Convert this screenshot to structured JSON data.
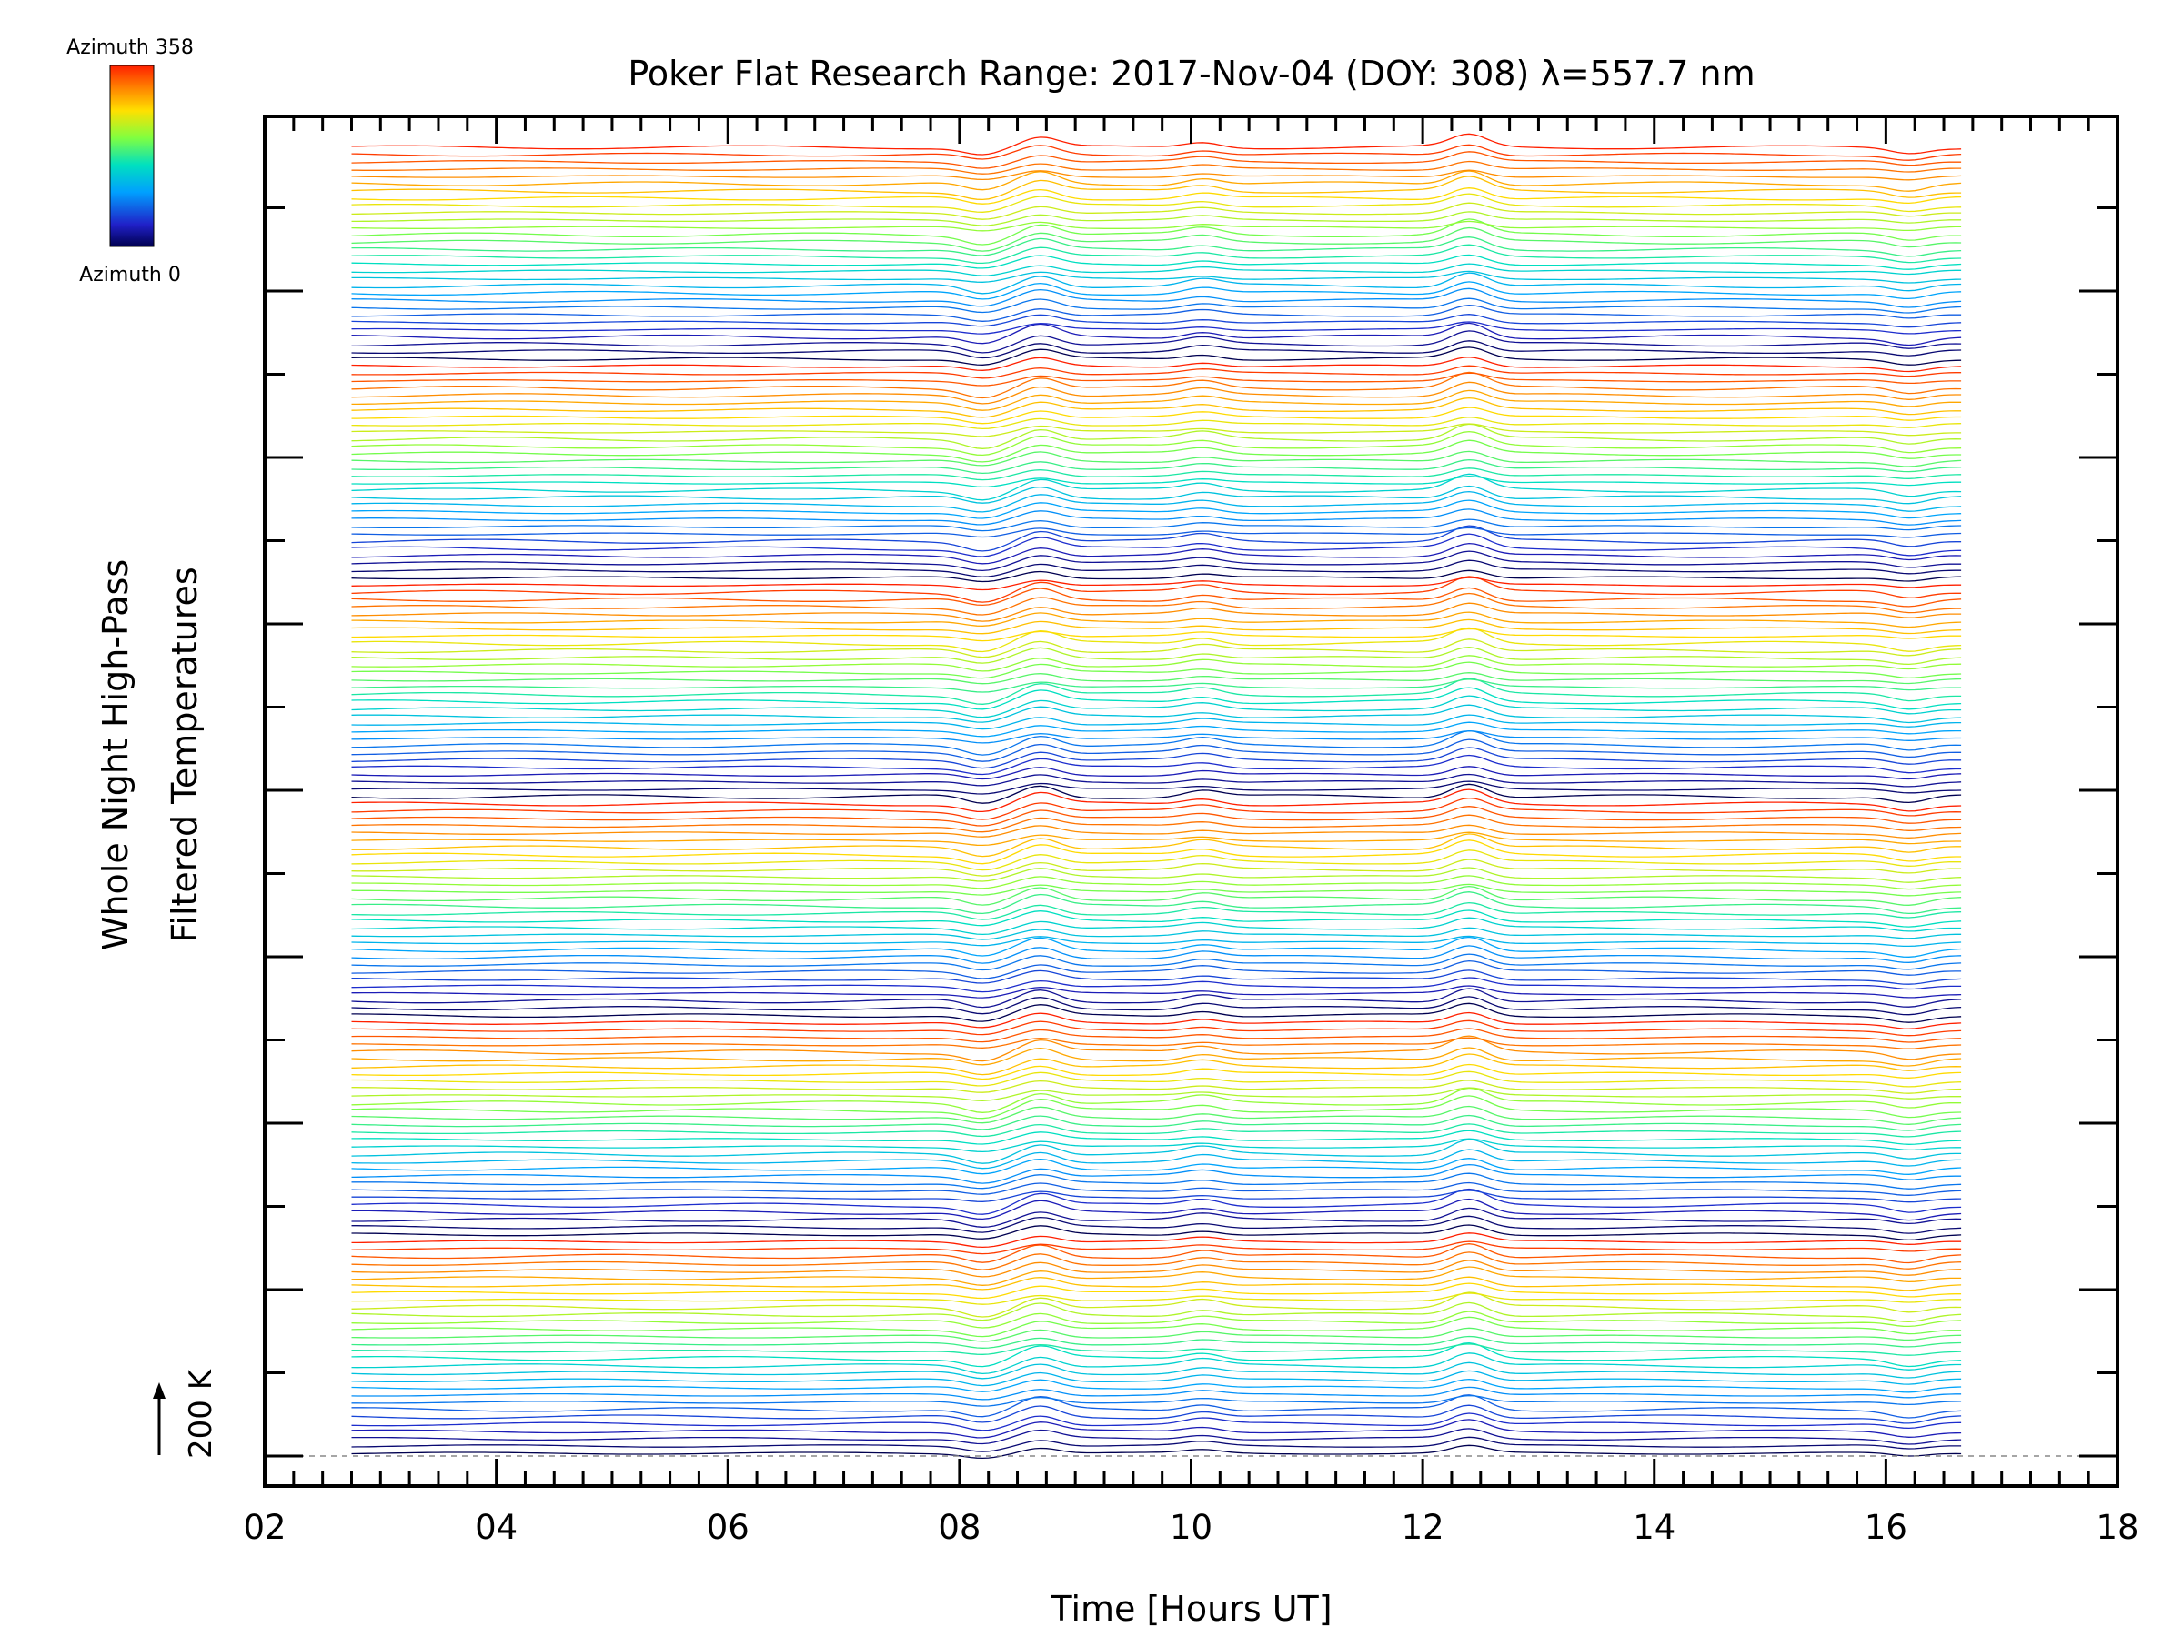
{
  "chart_data": {
    "type": "line",
    "title": "Poker Flat Research Range: 2017-Nov-04 (DOY: 308) λ=557.7 nm",
    "xlabel": "Time [Hours UT]",
    "ylabel_line1": "Whole Night High-Pass",
    "ylabel_line2": "Filtered Temperatures",
    "xlim": [
      2,
      18
    ],
    "x_ticks": [
      "02",
      "04",
      "06",
      "08",
      "10",
      "12",
      "14",
      "16",
      "18"
    ],
    "x_tick_values": [
      2,
      4,
      6,
      8,
      10,
      12,
      14,
      16,
      18
    ],
    "y_major_tick_count": 9,
    "grid": false,
    "scale_bar": {
      "label": "200 K",
      "value_K": 200
    },
    "colorbar": {
      "top_label": "Azimuth 358",
      "bottom_label": "Azimuth 0",
      "colormap": "rainbow",
      "range": [
        0,
        358
      ]
    },
    "stacked_series": {
      "description_of_stack": "one trace per azimuth, stacked vertically, colored by azimuth",
      "azimuth_start": 0,
      "azimuth_step": 2,
      "azimuth_end": 358,
      "time_start": 2.75,
      "time_end": 16.65,
      "common_features": [
        {
          "time": 8.2,
          "amplitude_K": -25
        },
        {
          "time": 8.7,
          "amplitude_K": 35
        },
        {
          "time": 10.1,
          "amplitude_K": 20
        },
        {
          "time": 12.4,
          "amplitude_K": 45
        },
        {
          "time": 16.2,
          "amplitude_K": -20
        }
      ]
    }
  }
}
